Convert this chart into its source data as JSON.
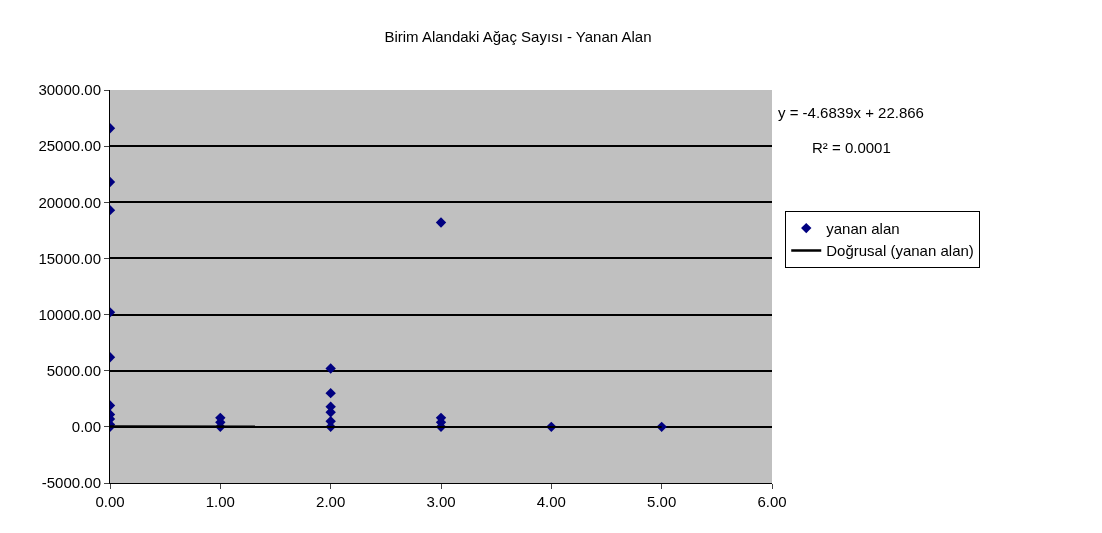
{
  "chart_data": {
    "type": "scatter",
    "title": "Birim Alandaki Ağaç Sayısı - Yanan Alan",
    "xlim": [
      0,
      6
    ],
    "xticks": [
      {
        "value": 0,
        "label": "0.00"
      },
      {
        "value": 1,
        "label": "1.00"
      },
      {
        "value": 2,
        "label": "2.00"
      },
      {
        "value": 3,
        "label": "3.00"
      },
      {
        "value": 4,
        "label": "4.00"
      },
      {
        "value": 5,
        "label": "5.00"
      },
      {
        "value": 6,
        "label": "6.00"
      }
    ],
    "ylim": [
      -5000,
      30000
    ],
    "yticks": [
      {
        "value": -5000,
        "label": "-5000.00"
      },
      {
        "value": 0,
        "label": "0.00"
      },
      {
        "value": 5000,
        "label": "5000.00"
      },
      {
        "value": 10000,
        "label": "10000.00"
      },
      {
        "value": 15000,
        "label": "15000.00"
      },
      {
        "value": 20000,
        "label": "20000.00"
      },
      {
        "value": 25000,
        "label": "25000.00"
      },
      {
        "value": 30000,
        "label": "30000.00"
      }
    ],
    "grid": "y",
    "legend": "right",
    "marker": "diamond",
    "series": [
      {
        "name": "yanan alan",
        "color": "#000080",
        "x": [
          0,
          0,
          0,
          0,
          0,
          0,
          0,
          0,
          0,
          0,
          1,
          1,
          1,
          2,
          2,
          2,
          2,
          2,
          2,
          3,
          3,
          3,
          3,
          4,
          5
        ],
        "values": [
          26600,
          21800,
          19300,
          10200,
          6200,
          1900,
          1100,
          700,
          200,
          0,
          800,
          400,
          0,
          5200,
          3000,
          1800,
          1300,
          500,
          0,
          18200,
          800,
          400,
          0,
          0,
          0
        ]
      },
      {
        "name": "Doğrusal (yanan alan)",
        "type": "line",
        "marker": "none",
        "color": "#000000",
        "x": [
          0,
          5
        ],
        "values": [
          23,
          -1
        ]
      }
    ],
    "annotations": [
      "y = -4.6839x + 22.866",
      "R² = 0.0001"
    ]
  }
}
